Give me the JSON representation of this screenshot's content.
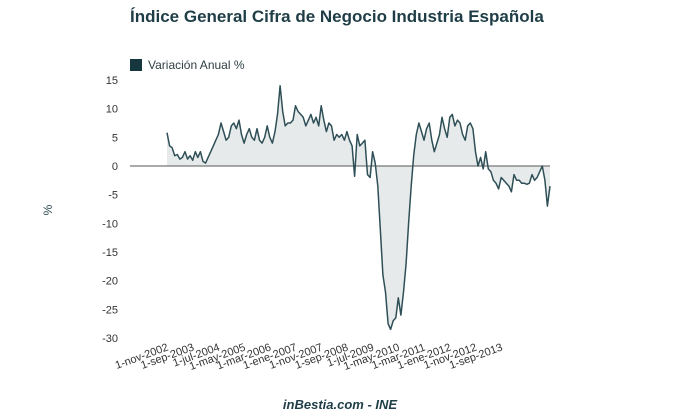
{
  "chart_data": {
    "type": "area",
    "title": "Índice General Cifra de Negocio Industria Española",
    "legend": [
      {
        "label": "Variación Anual %",
        "color": "#17373f"
      }
    ],
    "legend_placement": "top-left",
    "xlabel": "",
    "ylabel": "%",
    "ylim": [
      -30,
      15
    ],
    "yticks": [
      15,
      10,
      5,
      0,
      -5,
      -10,
      -15,
      -20,
      -25,
      -30
    ],
    "xtick_labels": [
      "1-nov-2002",
      "1-sep-2003",
      "1-jul-2004",
      "1-may-2005",
      "1-mar-2006",
      "1-ene-2007",
      "1-nov-2007",
      "1-sep-2008",
      "1-jul-2009",
      "1-may-2010",
      "1-mar-2011",
      "1-ene-2012",
      "1-nov-2012",
      "1-sep-2013"
    ],
    "x_start": "2002-11",
    "x_end": "2013-10",
    "series": [
      {
        "name": "Variación Anual %",
        "line_color": "#2f4f57",
        "fill_color": "#e6eaeb",
        "values": [
          5.8,
          3.5,
          3.2,
          1.8,
          2.0,
          1.2,
          1.5,
          2.5,
          1.2,
          1.8,
          1.0,
          2.5,
          1.5,
          2.5,
          0.8,
          0.5,
          1.5,
          2.5,
          3.5,
          4.5,
          5.5,
          7.5,
          6.0,
          4.5,
          5.0,
          7.0,
          7.5,
          6.5,
          8.0,
          5.5,
          4.0,
          5.5,
          6.5,
          5.0,
          4.5,
          6.5,
          4.5,
          4.0,
          5.0,
          7.0,
          5.0,
          4.0,
          6.0,
          9.0,
          14.0,
          9.5,
          7.0,
          7.5,
          7.5,
          8.0,
          10.5,
          9.5,
          9.0,
          8.5,
          7.0,
          8.0,
          9.0,
          7.5,
          8.5,
          7.0,
          10.5,
          8.0,
          6.0,
          7.5,
          7.0,
          4.5,
          5.5,
          5.0,
          5.5,
          4.5,
          6.0,
          4.5,
          3.5,
          -1.8,
          5.5,
          3.5,
          4.0,
          4.5,
          -1.5,
          -2.0,
          2.5,
          0.5,
          -3.5,
          -11.0,
          -19.0,
          -22.0,
          -27.5,
          -28.5,
          -27.0,
          -26.5,
          -23.0,
          -26.0,
          -22.0,
          -17.0,
          -10.0,
          -3.5,
          2.0,
          5.5,
          7.5,
          6.0,
          4.5,
          6.5,
          7.5,
          4.5,
          2.5,
          4.0,
          5.5,
          8.5,
          6.5,
          5.0,
          8.5,
          9.0,
          7.0,
          8.0,
          7.5,
          5.5,
          4.5,
          7.0,
          7.5,
          6.5,
          2.5,
          0.0,
          1.5,
          -0.5,
          2.5,
          -0.5,
          -1.0,
          -2.5,
          -3.0,
          -4.0,
          -2.0,
          -2.5,
          -3.0,
          -3.5,
          -4.5,
          -1.5,
          -2.5,
          -2.5,
          -3.0,
          -3.0,
          -3.2,
          -3.0,
          -1.5,
          -2.5,
          -2.0,
          -1.0,
          0.0,
          -2.5,
          -7.0,
          -3.5
        ]
      }
    ]
  },
  "footer": "inBestia.com - INE"
}
